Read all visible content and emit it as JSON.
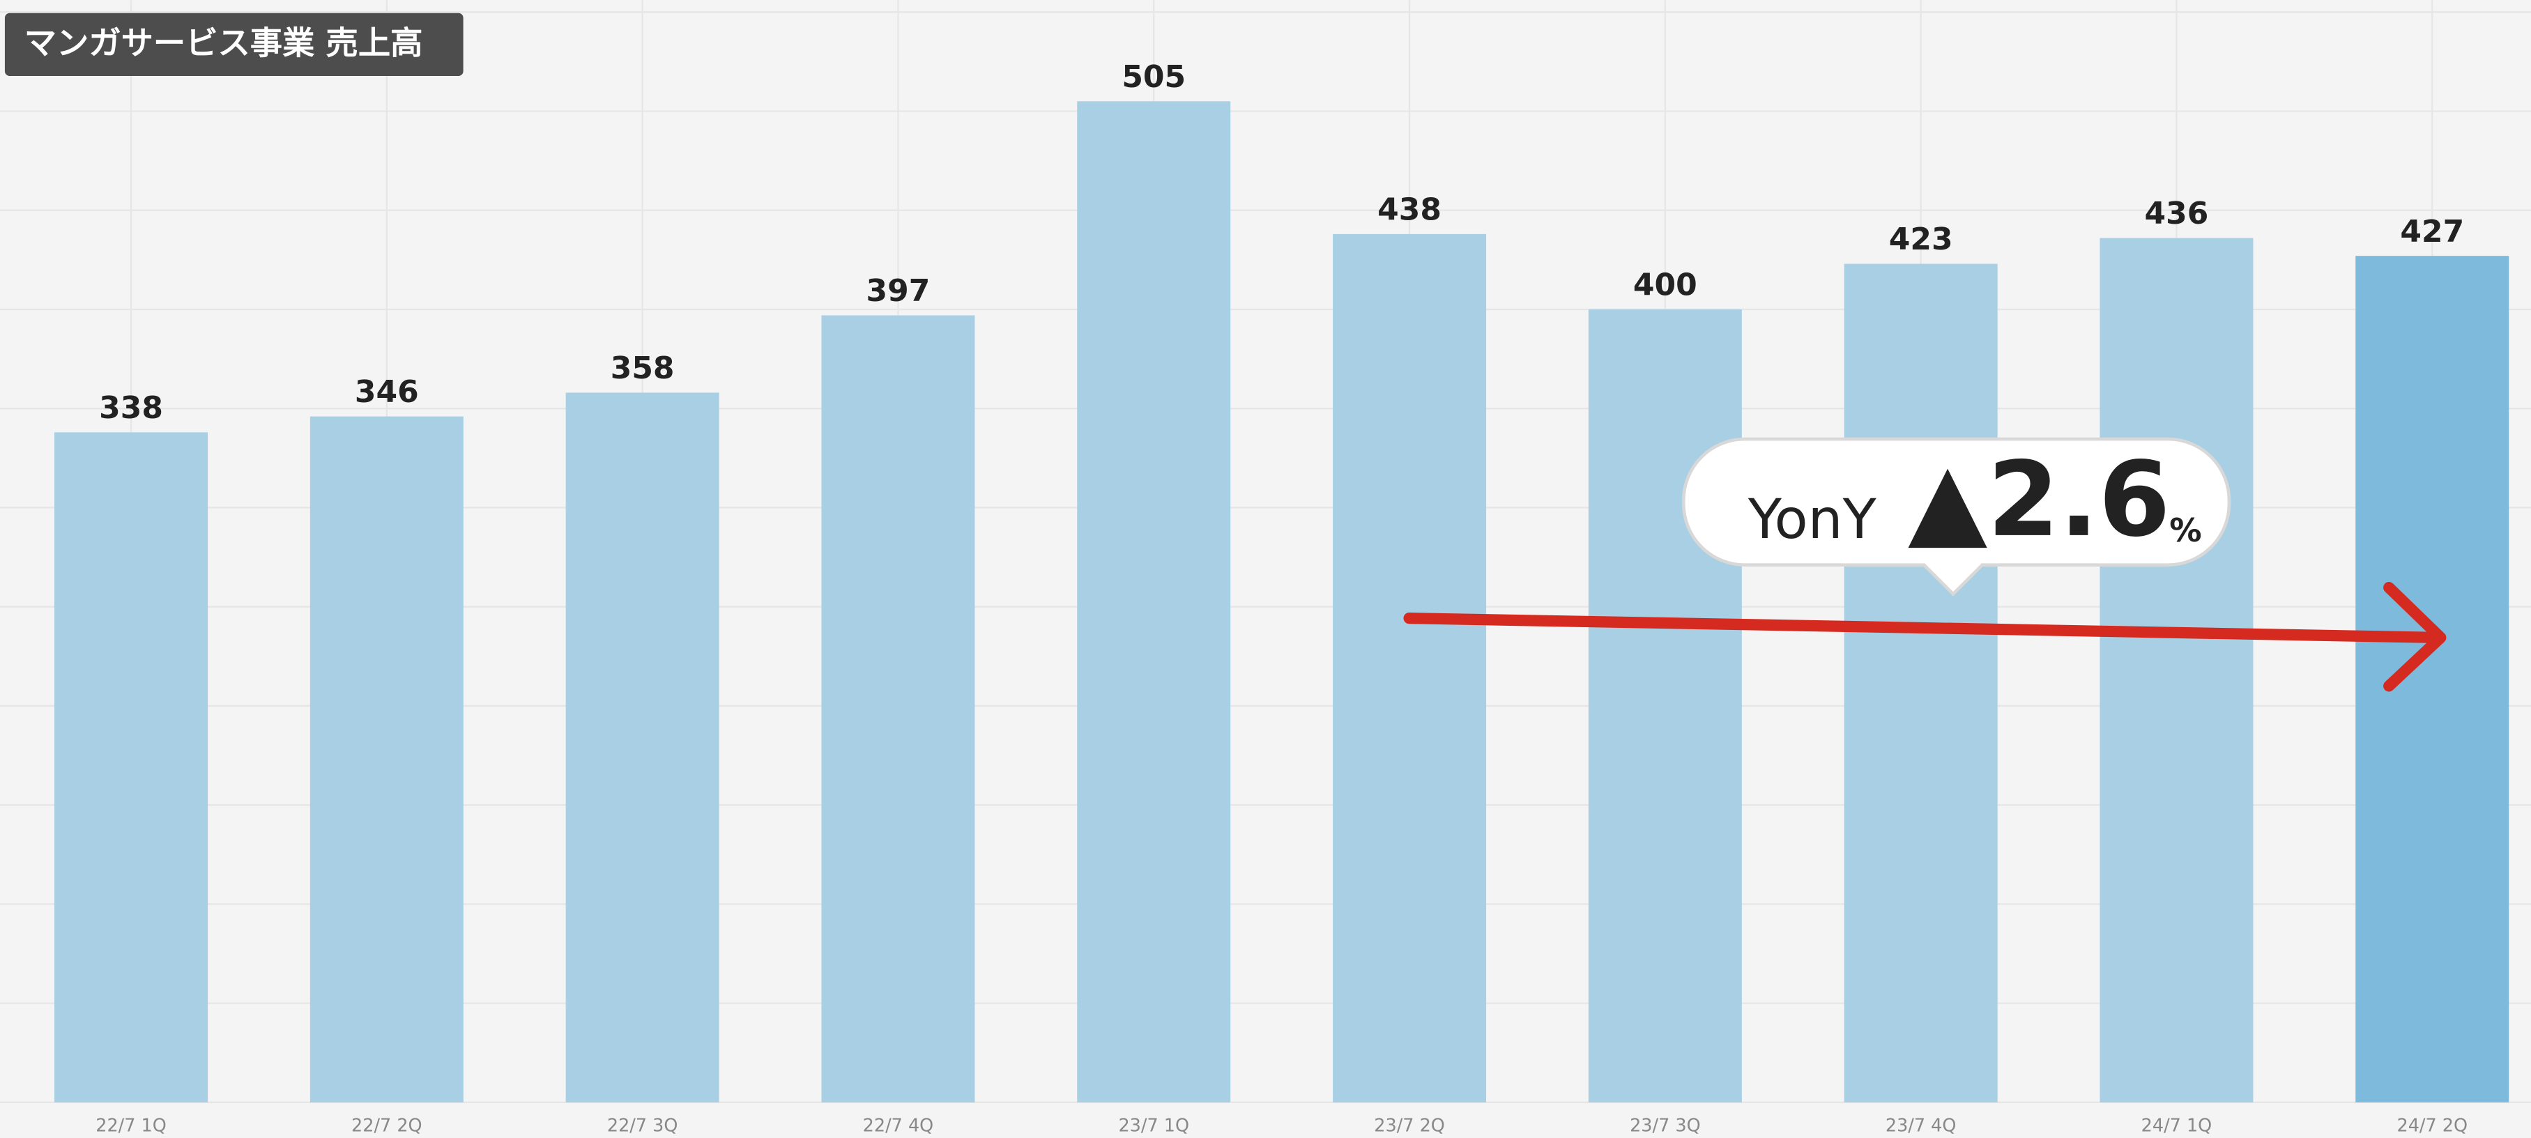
{
  "chart_data": {
    "type": "bar",
    "title": "マンガサービス事業 売上高",
    "categories": [
      "22/7 1Q",
      "22/7 2Q",
      "22/7 3Q",
      "22/7 4Q",
      "23/7 1Q",
      "23/7 2Q",
      "23/7 3Q",
      "23/7 4Q",
      "24/7 1Q",
      "24/7 2Q"
    ],
    "values": [
      338,
      346,
      358,
      397,
      505,
      438,
      400,
      423,
      436,
      427
    ],
    "colors": [
      "#a8cfe3",
      "#a8cfe3",
      "#a8cfe3",
      "#a8cfe3",
      "#a8cfe3",
      "#a8cfe3",
      "#a8cfe3",
      "#a8cfe3",
      "#a8cfe3",
      "#7ebadb"
    ],
    "ylim": [
      0,
      556
    ],
    "yticks": [
      0,
      50,
      100,
      150,
      200,
      250,
      300,
      350,
      400,
      450,
      500,
      550
    ],
    "grid": true,
    "annotation": {
      "label": "YonY",
      "value": "▲2.6",
      "unit": "%"
    }
  }
}
